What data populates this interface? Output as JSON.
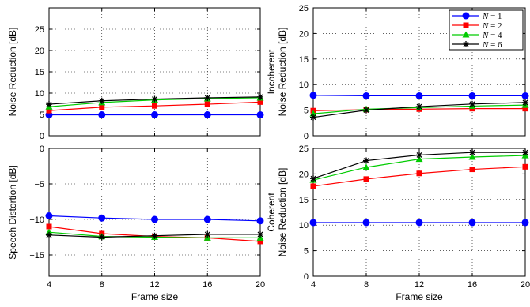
{
  "chart_data": [
    {
      "type": "line",
      "xlabel": "",
      "ylabel": "Noise Reduction [dB]",
      "xlim": [
        4,
        20
      ],
      "ylim": [
        0,
        30
      ],
      "xticks": [
        4,
        8,
        12,
        16,
        20
      ],
      "yticks": [
        0,
        5,
        10,
        15,
        20,
        25
      ],
      "xticklabels_shown": false,
      "grid": true,
      "x": [
        4,
        8,
        12,
        16,
        20
      ],
      "series": [
        {
          "name": "N = 1",
          "color": "#0000ff",
          "marker": "circle",
          "values": [
            4.9,
            4.9,
            4.9,
            4.9,
            4.9
          ]
        },
        {
          "name": "N = 2",
          "color": "#ff0000",
          "marker": "square",
          "values": [
            5.9,
            6.7,
            7.0,
            7.4,
            7.9
          ]
        },
        {
          "name": "N = 4",
          "color": "#00cc00",
          "marker": "triangle",
          "values": [
            6.8,
            7.8,
            8.4,
            8.7,
            8.9
          ]
        },
        {
          "name": "N = 6",
          "color": "#000000",
          "marker": "star",
          "values": [
            7.4,
            8.2,
            8.6,
            8.9,
            9.1
          ]
        }
      ]
    },
    {
      "type": "line",
      "xlabel": "",
      "ylabel": [
        "Incoherent",
        "Noise Reduction [dB]"
      ],
      "xlim": [
        4,
        20
      ],
      "ylim": [
        0,
        25
      ],
      "xticks": [
        4,
        8,
        12,
        16,
        20
      ],
      "yticks": [
        0,
        5,
        10,
        15,
        20,
        25
      ],
      "xticklabels_shown": false,
      "grid": true,
      "legend": "top-right",
      "legend_labels": [
        "N = 1",
        "N = 2",
        "N = 4",
        "N = 6"
      ],
      "x": [
        4,
        8,
        12,
        16,
        20
      ],
      "series": [
        {
          "name": "N = 1",
          "color": "#0000ff",
          "marker": "circle",
          "values": [
            7.9,
            7.8,
            7.8,
            7.8,
            7.8
          ]
        },
        {
          "name": "N = 2",
          "color": "#ff0000",
          "marker": "square",
          "values": [
            4.9,
            5.1,
            5.2,
            5.3,
            5.3
          ]
        },
        {
          "name": "N = 4",
          "color": "#00cc00",
          "marker": "triangle",
          "values": [
            4.3,
            5.2,
            5.5,
            5.8,
            6.0
          ]
        },
        {
          "name": "N = 6",
          "color": "#000000",
          "marker": "star",
          "values": [
            3.6,
            5.0,
            5.7,
            6.2,
            6.5
          ]
        }
      ]
    },
    {
      "type": "line",
      "xlabel": "",
      "ylabel": "Speech Distortion [dB]",
      "xlim": [
        4,
        20
      ],
      "ylim": [
        -18,
        0
      ],
      "xticks": [
        4,
        8,
        12,
        16,
        20
      ],
      "yticks": [
        0,
        -5,
        -10,
        -15
      ],
      "ytick_labels": [
        "0",
        "−5",
        "−10",
        "−15"
      ],
      "xticklabels_shown": true,
      "grid": true,
      "x": [
        4,
        8,
        12,
        16,
        20
      ],
      "series": [
        {
          "name": "N = 1",
          "color": "#0000ff",
          "marker": "circle",
          "values": [
            -9.5,
            -9.8,
            -10.0,
            -10.0,
            -10.2
          ]
        },
        {
          "name": "N = 2",
          "color": "#ff0000",
          "marker": "square",
          "values": [
            -11.0,
            -12.0,
            -12.4,
            -12.6,
            -13.1
          ]
        },
        {
          "name": "N = 4",
          "color": "#00cc00",
          "marker": "triangle",
          "values": [
            -11.8,
            -12.4,
            -12.5,
            -12.6,
            -12.6
          ]
        },
        {
          "name": "N = 6",
          "color": "#000000",
          "marker": "star",
          "values": [
            -12.2,
            -12.5,
            -12.3,
            -12.1,
            -12.1
          ]
        }
      ]
    },
    {
      "type": "line",
      "xlabel": "Frame size",
      "ylabel": [
        "Coherent",
        "Noise Reduction [dB]"
      ],
      "xlim": [
        4,
        20
      ],
      "ylim": [
        0,
        25
      ],
      "xticks": [
        4,
        8,
        12,
        16,
        20
      ],
      "yticks": [
        0,
        5,
        10,
        15,
        20,
        25
      ],
      "xticklabels_shown": true,
      "grid": true,
      "x": [
        4,
        8,
        12,
        16,
        20
      ],
      "series": [
        {
          "name": "N = 1",
          "color": "#0000ff",
          "marker": "circle",
          "values": [
            10.5,
            10.5,
            10.5,
            10.5,
            10.5
          ]
        },
        {
          "name": "N = 2",
          "color": "#ff0000",
          "marker": "square",
          "values": [
            17.6,
            19.0,
            20.1,
            20.9,
            21.4
          ]
        },
        {
          "name": "N = 4",
          "color": "#00cc00",
          "marker": "triangle",
          "values": [
            18.8,
            21.3,
            22.9,
            23.3,
            23.6
          ]
        },
        {
          "name": "N = 6",
          "color": "#000000",
          "marker": "star",
          "values": [
            19.1,
            22.6,
            23.7,
            24.2,
            24.2
          ]
        }
      ]
    }
  ],
  "shared_xlabel": "Frame size"
}
